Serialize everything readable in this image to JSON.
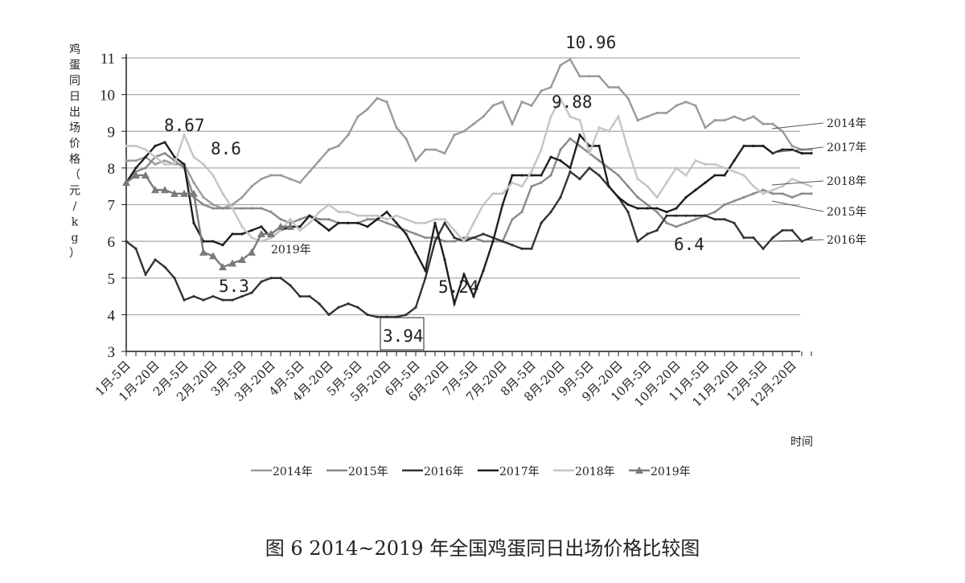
{
  "chart_data": {
    "type": "line",
    "y_label": "鸡蛋同日出场价格（元/kg）",
    "x_label": "时间",
    "caption": "图 6 2014~2019 年全国鸡蛋同日出场价格比较图",
    "categories": [
      "1月-5日",
      null,
      null,
      "1月-20日",
      null,
      null,
      "2月-5日",
      null,
      null,
      "2月-20日",
      null,
      null,
      "3月-5日",
      null,
      null,
      "3月-20日",
      null,
      null,
      "4月-5日",
      null,
      null,
      "4月-20日",
      null,
      null,
      "5月-5日",
      null,
      null,
      "5月-20日",
      null,
      null,
      "6月-5日",
      null,
      null,
      "6月-20日",
      null,
      null,
      "7月-5日",
      null,
      null,
      "7月-20日",
      null,
      null,
      "8月-5日",
      null,
      null,
      "8月-20日",
      null,
      null,
      "9月-5日",
      null,
      null,
      "9月-20日",
      null,
      null,
      "10月-5日",
      null,
      null,
      "10月-20日",
      null,
      null,
      "11月-5日",
      null,
      null,
      "11月-20日",
      null,
      null,
      "12月-5日",
      null,
      null,
      "12月-20日",
      null,
      null
    ],
    "ylim": [
      3,
      11
    ],
    "yticks": [
      3,
      4,
      5,
      6,
      7,
      8,
      9,
      10,
      11
    ],
    "grid": true,
    "series": [
      {
        "name": "2014年",
        "color": "#9a9a9a",
        "values": [
          8.2,
          8.2,
          8.3,
          8.1,
          8.2,
          8.1,
          8.1,
          7.6,
          7.2,
          7.0,
          6.9,
          7.0,
          7.2,
          7.5,
          7.7,
          7.8,
          7.8,
          7.7,
          7.6,
          7.9,
          8.2,
          8.5,
          8.6,
          8.9,
          9.4,
          9.6,
          9.9,
          9.8,
          9.1,
          8.8,
          8.2,
          8.5,
          8.5,
          8.4,
          8.9,
          9.0,
          9.2,
          9.4,
          9.7,
          9.8,
          9.2,
          9.8,
          9.7,
          10.1,
          10.2,
          10.8,
          10.96,
          10.5,
          10.5,
          10.5,
          10.2,
          10.2,
          9.9,
          9.3,
          9.4,
          9.5,
          9.5,
          9.7,
          9.8,
          9.7,
          9.1,
          9.3,
          9.3,
          9.4,
          9.3,
          9.4,
          9.2,
          9.2,
          9.0,
          8.6,
          8.5,
          8.5
        ]
      },
      {
        "name": "2015年",
        "color": "#8a8a8a",
        "values": [
          7.6,
          7.9,
          8.0,
          8.3,
          8.4,
          8.2,
          8.0,
          7.2,
          7.0,
          6.9,
          6.9,
          6.9,
          6.9,
          6.9,
          6.9,
          6.8,
          6.6,
          6.5,
          6.6,
          6.7,
          6.6,
          6.6,
          6.5,
          6.5,
          6.5,
          6.6,
          6.6,
          6.5,
          6.4,
          6.3,
          6.2,
          6.1,
          6.1,
          6.0,
          6.0,
          6.1,
          6.1,
          6.0,
          6.0,
          6.0,
          6.6,
          6.8,
          7.5,
          7.6,
          7.8,
          8.5,
          8.8,
          8.6,
          8.4,
          8.2,
          8.0,
          7.8,
          7.5,
          7.2,
          7.0,
          6.8,
          6.5,
          6.4,
          6.5,
          6.6,
          6.7,
          6.8,
          7.0,
          7.1,
          7.2,
          7.3,
          7.4,
          7.3,
          7.3,
          7.2,
          7.3,
          7.3
        ]
      },
      {
        "name": "2016年",
        "color": "#333333",
        "values": [
          6.0,
          5.8,
          5.1,
          5.5,
          5.3,
          5.0,
          4.4,
          4.5,
          4.4,
          4.5,
          4.4,
          4.4,
          4.5,
          4.6,
          4.9,
          5.0,
          5.0,
          4.8,
          4.5,
          4.5,
          4.3,
          4.0,
          4.2,
          4.3,
          4.2,
          4.0,
          3.94,
          3.94,
          3.94,
          4.0,
          4.2,
          5.0,
          6.0,
          6.5,
          6.1,
          6.0,
          6.1,
          6.2,
          6.1,
          6.0,
          5.9,
          5.8,
          5.8,
          6.5,
          6.8,
          7.2,
          7.9,
          7.7,
          8.0,
          7.8,
          7.5,
          7.2,
          6.8,
          6.0,
          6.2,
          6.3,
          6.7,
          6.7,
          6.7,
          6.7,
          6.7,
          6.6,
          6.6,
          6.5,
          6.1,
          6.1,
          5.8,
          6.1,
          6.3,
          6.3,
          6.0,
          6.1
        ]
      },
      {
        "name": "2017年",
        "color": "#1e1e1e",
        "values": [
          7.6,
          8.0,
          8.3,
          8.6,
          8.7,
          8.3,
          8.1,
          6.5,
          6.0,
          6.0,
          5.9,
          6.2,
          6.2,
          6.3,
          6.4,
          6.1,
          6.3,
          6.4,
          6.4,
          6.7,
          6.5,
          6.3,
          6.5,
          6.5,
          6.5,
          6.4,
          6.6,
          6.8,
          6.5,
          6.2,
          5.7,
          5.2,
          6.5,
          5.5,
          4.3,
          5.1,
          4.5,
          5.2,
          6.0,
          7.0,
          7.8,
          7.8,
          7.8,
          7.8,
          8.3,
          8.2,
          8.0,
          8.9,
          8.6,
          8.6,
          7.5,
          7.2,
          7.0,
          6.9,
          6.9,
          6.9,
          6.8,
          6.9,
          7.2,
          7.4,
          7.6,
          7.8,
          7.8,
          8.2,
          8.6,
          8.6,
          8.6,
          8.4,
          8.5,
          8.5,
          8.4,
          8.4
        ]
      },
      {
        "name": "2018年",
        "color": "#c4c4c4",
        "values": [
          8.6,
          8.6,
          8.5,
          8.3,
          8.1,
          8.1,
          8.9,
          8.3,
          8.1,
          7.8,
          7.3,
          6.9,
          6.4,
          6.1,
          6.0,
          6.1,
          6.3,
          6.6,
          6.3,
          6.5,
          6.8,
          7.0,
          6.8,
          6.8,
          6.7,
          6.7,
          6.7,
          6.6,
          6.7,
          6.6,
          6.5,
          6.5,
          6.6,
          6.6,
          6.3,
          6.0,
          6.5,
          7.0,
          7.3,
          7.3,
          7.6,
          7.5,
          7.9,
          8.5,
          9.4,
          9.88,
          9.4,
          9.3,
          8.4,
          9.1,
          9.0,
          9.4,
          8.5,
          7.7,
          7.5,
          7.2,
          7.6,
          8.0,
          7.8,
          8.2,
          8.1,
          8.1,
          8.0,
          7.9,
          7.8,
          7.5,
          7.3,
          7.4,
          7.5,
          7.7,
          7.6,
          7.5
        ]
      },
      {
        "name": "2019年",
        "color": "#7a7a7a",
        "marker": "triangle",
        "values": [
          7.6,
          7.8,
          7.8,
          7.4,
          7.4,
          7.3,
          7.3,
          7.3,
          5.7,
          5.6,
          5.3,
          5.4,
          5.5,
          5.7,
          6.2,
          6.2,
          6.4,
          6.4,
          null,
          null,
          null,
          null,
          null,
          null,
          null,
          null,
          null,
          null,
          null,
          null,
          null,
          null,
          null,
          null,
          null,
          null,
          null,
          null,
          null,
          null,
          null,
          null,
          null,
          null,
          null,
          null,
          null,
          null,
          null,
          null,
          null,
          null,
          null,
          null,
          null,
          null,
          null,
          null,
          null,
          null,
          null,
          null,
          null,
          null,
          null,
          null,
          null,
          null,
          null,
          null,
          null,
          null
        ]
      }
    ],
    "annotations": [
      "8.67",
      "8.6",
      "5.3",
      "3.94",
      "5.24",
      "9.88",
      "10.96",
      "6.4",
      "2019年"
    ]
  }
}
